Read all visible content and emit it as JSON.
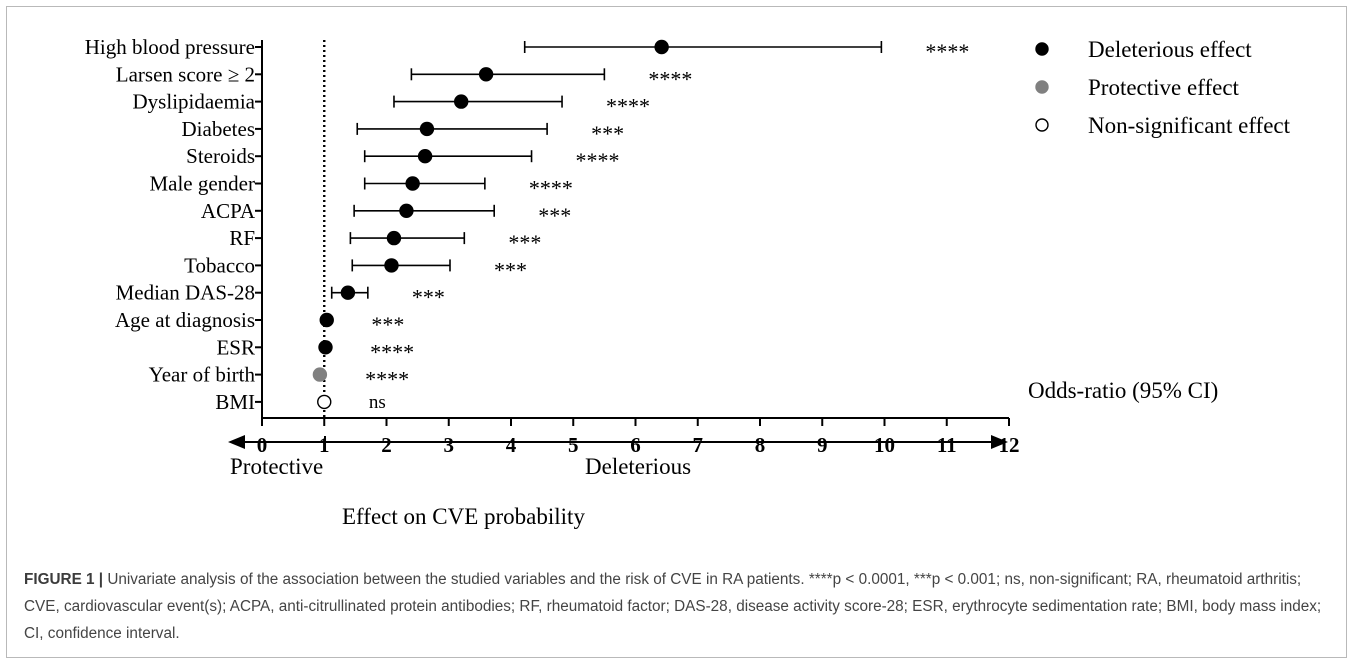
{
  "chart_data": {
    "type": "forest",
    "xlabel": "Odds-ratio (95% CI)",
    "xlim": [
      0,
      12
    ],
    "x_ticks": [
      0,
      1,
      2,
      3,
      4,
      5,
      6,
      7,
      8,
      9,
      10,
      11,
      12
    ],
    "reference_line": 1,
    "rows": [
      {
        "label": "High blood pressure",
        "or": 6.42,
        "lo": 4.22,
        "hi": 9.95,
        "sig": "****",
        "effect": "deleterious"
      },
      {
        "label": "Larsen score ≥ 2",
        "or": 3.6,
        "lo": 2.4,
        "hi": 5.5,
        "sig": "****",
        "effect": "deleterious"
      },
      {
        "label": "Dyslipidaemia",
        "or": 3.2,
        "lo": 2.12,
        "hi": 4.82,
        "sig": "****",
        "effect": "deleterious"
      },
      {
        "label": "Diabetes",
        "or": 2.65,
        "lo": 1.53,
        "hi": 4.58,
        "sig": "***",
        "effect": "deleterious"
      },
      {
        "label": "Steroids",
        "or": 2.62,
        "lo": 1.65,
        "hi": 4.33,
        "sig": "****",
        "effect": "deleterious"
      },
      {
        "label": "Male gender",
        "or": 2.42,
        "lo": 1.65,
        "hi": 3.58,
        "sig": "****",
        "effect": "deleterious"
      },
      {
        "label": "ACPA",
        "or": 2.32,
        "lo": 1.48,
        "hi": 3.73,
        "sig": "***",
        "effect": "deleterious"
      },
      {
        "label": "RF",
        "or": 2.12,
        "lo": 1.42,
        "hi": 3.25,
        "sig": "***",
        "effect": "deleterious"
      },
      {
        "label": "Tobacco",
        "or": 2.08,
        "lo": 1.45,
        "hi": 3.02,
        "sig": "***",
        "effect": "deleterious"
      },
      {
        "label": "Median DAS-28",
        "or": 1.38,
        "lo": 1.12,
        "hi": 1.7,
        "sig": "***",
        "effect": "deleterious"
      },
      {
        "label": "Age at diagnosis",
        "or": 1.04,
        "lo": 1.03,
        "hi": 1.05,
        "sig": "***",
        "effect": "deleterious"
      },
      {
        "label": "ESR",
        "or": 1.02,
        "lo": 1.01,
        "hi": 1.03,
        "sig": "****",
        "effect": "deleterious"
      },
      {
        "label": "Year of birth",
        "or": 0.93,
        "lo": 0.92,
        "hi": 0.95,
        "sig": "****",
        "effect": "protective"
      },
      {
        "label": "BMI",
        "or": 1.0,
        "lo": 0.99,
        "hi": 1.01,
        "sig": "ns",
        "effect": "non-significant"
      }
    ],
    "legend": [
      {
        "label": "Deleterious effect",
        "effect": "deleterious"
      },
      {
        "label": "Protective effect",
        "effect": "protective"
      },
      {
        "label": "Non-significant effect",
        "effect": "non-significant"
      }
    ],
    "legend_position": "top-right",
    "colors": {
      "deleterious": "#000000",
      "protective": "#808080",
      "non-significant": "#ffffff"
    },
    "arrow_labels": {
      "left": "Protective",
      "right": "Deleterious"
    },
    "effect_title": "Effect on CVE probability"
  },
  "caption": {
    "label": "FIGURE 1 |",
    "text": " Univariate analysis of the association between the studied variables and the risk of CVE in RA patients. ****p < 0.0001, ***p < 0.001; ns, non-significant; RA, rheumatoid arthritis; CVE, cardiovascular event(s); ACPA, anti-citrullinated protein antibodies; RF, rheumatoid factor; DAS-28, disease activity score-28; ESR, erythrocyte sedimentation rate; BMI, body mass index; CI, confidence interval."
  }
}
